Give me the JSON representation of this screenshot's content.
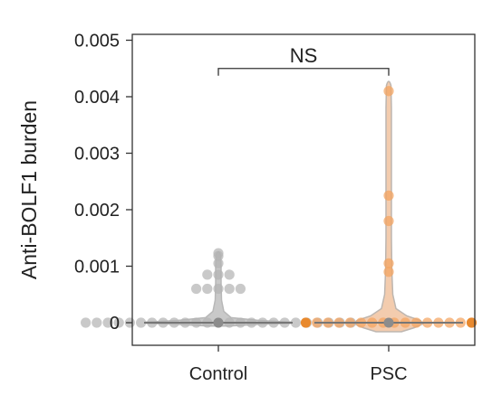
{
  "chart_data": {
    "type": "scatter",
    "variant": "violin with swarm points",
    "ylabel": "Anti-BOLF1 burden",
    "ylim": [
      -0.0004,
      0.0052
    ],
    "yticks": [
      0,
      0.001,
      0.002,
      0.003,
      0.004,
      0.005
    ],
    "ytick_labels": [
      "0",
      "0.001",
      "0.002",
      "0.003",
      "0.004",
      "0.005"
    ],
    "categories": [
      "Control",
      "PSC"
    ],
    "annotation": {
      "text": "NS",
      "from": "Control",
      "to": "PSC",
      "y": 0.0045
    },
    "grid": false,
    "legend": "none",
    "series": [
      {
        "category": "Control",
        "color": "#b4b4b4",
        "median": 0,
        "values": [
          0,
          0,
          0,
          0,
          0,
          0,
          0,
          0,
          0,
          0,
          0,
          0,
          0,
          0,
          0,
          0,
          0,
          0,
          0,
          0,
          0,
          0,
          0,
          0,
          0,
          0.0006,
          0.0006,
          0.0006,
          0.0006,
          0.0006,
          0.00085,
          0.00085,
          0.00085,
          0.00105,
          0.00118,
          0.00123
        ]
      },
      {
        "category": "PSC",
        "color": "#f4a460",
        "highlight_color": "#e8892e",
        "median": 0,
        "values": [
          0,
          0,
          0,
          0,
          0,
          0,
          0,
          0,
          0,
          0,
          0,
          0,
          0,
          0,
          0,
          0,
          0.0009,
          0.00105,
          0.0018,
          0.00225,
          0.0041
        ]
      }
    ]
  }
}
